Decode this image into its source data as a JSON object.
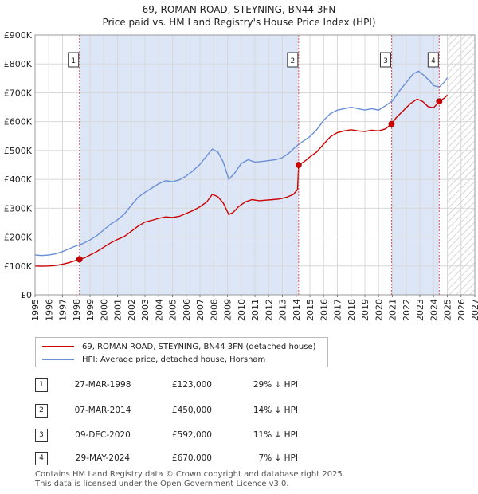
{
  "title_line1": "69, ROMAN ROAD, STEYNING, BN44 3FN",
  "title_line2": "Price paid vs. HM Land Registry's House Price Index (HPI)",
  "colors": {
    "price_paid": "#cc0000",
    "hpi": "#6a8fd6",
    "shade": "#dde6f7",
    "sale_line": "#d85c5c"
  },
  "legend": {
    "price_paid": "69, ROMAN ROAD, STEYNING, BN44 3FN (detached house)",
    "hpi": "HPI: Average price, detached house, Horsham"
  },
  "transactions": [
    {
      "num": "1",
      "date": "27-MAR-1998",
      "price": "£123,000",
      "hpi": "29% ↓ HPI"
    },
    {
      "num": "2",
      "date": "07-MAR-2014",
      "price": "£450,000",
      "hpi": "14% ↓ HPI"
    },
    {
      "num": "3",
      "date": "09-DEC-2020",
      "price": "£592,000",
      "hpi": "11% ↓ HPI"
    },
    {
      "num": "4",
      "date": "29-MAY-2024",
      "price": "£670,000",
      "hpi": "7% ↓ HPI"
    }
  ],
  "footer_line1": "Contains HM Land Registry data © Crown copyright and database right 2025.",
  "footer_line2": "This data is licensed under the Open Government Licence v3.0.",
  "chart_data": {
    "type": "line",
    "xlim": [
      1995,
      2027
    ],
    "ylim": [
      0,
      900000
    ],
    "x_ticks": [
      "1995",
      "1996",
      "1997",
      "1998",
      "1999",
      "2000",
      "2001",
      "2002",
      "2003",
      "2004",
      "2005",
      "2006",
      "2007",
      "2008",
      "2009",
      "2010",
      "2011",
      "2012",
      "2013",
      "2014",
      "2015",
      "2016",
      "2017",
      "2018",
      "2019",
      "2020",
      "2021",
      "2022",
      "2023",
      "2024",
      "2025",
      "2026",
      "2027"
    ],
    "y_ticks": [
      {
        "value": 0,
        "label": "£0"
      },
      {
        "value": 100000,
        "label": "£100K"
      },
      {
        "value": 200000,
        "label": "£200K"
      },
      {
        "value": 300000,
        "label": "£300K"
      },
      {
        "value": 400000,
        "label": "£400K"
      },
      {
        "value": 500000,
        "label": "£500K"
      },
      {
        "value": 600000,
        "label": "£600K"
      },
      {
        "value": 700000,
        "label": "£700K"
      },
      {
        "value": 800000,
        "label": "£800K"
      },
      {
        "value": 900000,
        "label": "£900K"
      }
    ],
    "grid": true,
    "hatched_from": 2025.0,
    "shaded_ranges": [
      [
        1998.23,
        2014.18
      ],
      [
        2020.94,
        2024.41
      ]
    ],
    "sales": [
      {
        "label": "1",
        "x": 1998.23,
        "y": 123000
      },
      {
        "label": "2",
        "x": 2014.18,
        "y": 450000
      },
      {
        "label": "3",
        "x": 2020.94,
        "y": 592000
      },
      {
        "label": "4",
        "x": 2024.41,
        "y": 670000
      }
    ],
    "series": [
      {
        "name": "69, ROMAN ROAD, STEYNING, BN44 3FN (detached house)",
        "key": "price_paid",
        "points": [
          [
            1995.0,
            100000
          ],
          [
            1995.5,
            99000
          ],
          [
            1996.0,
            100000
          ],
          [
            1996.5,
            102000
          ],
          [
            1997.0,
            106000
          ],
          [
            1997.5,
            112000
          ],
          [
            1998.23,
            123000
          ],
          [
            1998.6,
            128000
          ],
          [
            1999.0,
            138000
          ],
          [
            1999.5,
            150000
          ],
          [
            2000.0,
            165000
          ],
          [
            2000.5,
            180000
          ],
          [
            2001.0,
            192000
          ],
          [
            2001.5,
            202000
          ],
          [
            2002.0,
            220000
          ],
          [
            2002.5,
            238000
          ],
          [
            2003.0,
            252000
          ],
          [
            2003.5,
            258000
          ],
          [
            2004.0,
            265000
          ],
          [
            2004.5,
            270000
          ],
          [
            2005.0,
            268000
          ],
          [
            2005.5,
            272000
          ],
          [
            2006.0,
            282000
          ],
          [
            2006.5,
            292000
          ],
          [
            2007.0,
            305000
          ],
          [
            2007.5,
            322000
          ],
          [
            2007.9,
            348000
          ],
          [
            2008.3,
            340000
          ],
          [
            2008.7,
            318000
          ],
          [
            2009.1,
            278000
          ],
          [
            2009.4,
            285000
          ],
          [
            2009.8,
            305000
          ],
          [
            2010.3,
            322000
          ],
          [
            2010.8,
            330000
          ],
          [
            2011.3,
            326000
          ],
          [
            2011.8,
            328000
          ],
          [
            2012.3,
            330000
          ],
          [
            2012.8,
            332000
          ],
          [
            2013.3,
            338000
          ],
          [
            2013.8,
            348000
          ],
          [
            2014.1,
            365000
          ],
          [
            2014.18,
            450000
          ],
          [
            2014.6,
            462000
          ],
          [
            2015.0,
            478000
          ],
          [
            2015.5,
            495000
          ],
          [
            2016.0,
            522000
          ],
          [
            2016.5,
            548000
          ],
          [
            2017.0,
            562000
          ],
          [
            2017.5,
            568000
          ],
          [
            2018.0,
            572000
          ],
          [
            2018.5,
            568000
          ],
          [
            2019.0,
            566000
          ],
          [
            2019.5,
            570000
          ],
          [
            2020.0,
            568000
          ],
          [
            2020.5,
            575000
          ],
          [
            2020.94,
            592000
          ],
          [
            2021.3,
            615000
          ],
          [
            2021.8,
            638000
          ],
          [
            2022.3,
            662000
          ],
          [
            2022.8,
            678000
          ],
          [
            2023.2,
            670000
          ],
          [
            2023.6,
            652000
          ],
          [
            2024.0,
            648000
          ],
          [
            2024.41,
            670000
          ],
          [
            2024.8,
            682000
          ],
          [
            2025.0,
            692000
          ]
        ]
      },
      {
        "name": "HPI: Average price, detached house, Horsham",
        "key": "hpi",
        "points": [
          [
            1995.0,
            138000
          ],
          [
            1995.5,
            136000
          ],
          [
            1996.0,
            138000
          ],
          [
            1996.5,
            142000
          ],
          [
            1997.0,
            150000
          ],
          [
            1997.5,
            160000
          ],
          [
            1998.0,
            170000
          ],
          [
            1998.5,
            178000
          ],
          [
            1999.0,
            190000
          ],
          [
            1999.5,
            205000
          ],
          [
            2000.0,
            225000
          ],
          [
            2000.5,
            245000
          ],
          [
            2001.0,
            260000
          ],
          [
            2001.5,
            280000
          ],
          [
            2002.0,
            310000
          ],
          [
            2002.5,
            338000
          ],
          [
            2003.0,
            355000
          ],
          [
            2003.5,
            370000
          ],
          [
            2004.0,
            385000
          ],
          [
            2004.5,
            395000
          ],
          [
            2005.0,
            392000
          ],
          [
            2005.5,
            398000
          ],
          [
            2006.0,
            412000
          ],
          [
            2006.5,
            430000
          ],
          [
            2007.0,
            452000
          ],
          [
            2007.5,
            482000
          ],
          [
            2007.9,
            505000
          ],
          [
            2008.3,
            495000
          ],
          [
            2008.7,
            460000
          ],
          [
            2009.1,
            400000
          ],
          [
            2009.5,
            420000
          ],
          [
            2010.0,
            455000
          ],
          [
            2010.5,
            468000
          ],
          [
            2011.0,
            460000
          ],
          [
            2011.5,
            462000
          ],
          [
            2012.0,
            465000
          ],
          [
            2012.5,
            468000
          ],
          [
            2013.0,
            475000
          ],
          [
            2013.5,
            492000
          ],
          [
            2014.0,
            515000
          ],
          [
            2014.5,
            532000
          ],
          [
            2015.0,
            548000
          ],
          [
            2015.5,
            572000
          ],
          [
            2016.0,
            605000
          ],
          [
            2016.5,
            628000
          ],
          [
            2017.0,
            640000
          ],
          [
            2017.5,
            645000
          ],
          [
            2018.0,
            650000
          ],
          [
            2018.5,
            645000
          ],
          [
            2019.0,
            640000
          ],
          [
            2019.5,
            645000
          ],
          [
            2020.0,
            640000
          ],
          [
            2020.5,
            655000
          ],
          [
            2021.0,
            672000
          ],
          [
            2021.5,
            705000
          ],
          [
            2022.0,
            735000
          ],
          [
            2022.5,
            765000
          ],
          [
            2022.9,
            775000
          ],
          [
            2023.3,
            760000
          ],
          [
            2023.7,
            742000
          ],
          [
            2024.0,
            725000
          ],
          [
            2024.4,
            720000
          ],
          [
            2024.8,
            738000
          ],
          [
            2025.0,
            752000
          ]
        ]
      }
    ]
  }
}
